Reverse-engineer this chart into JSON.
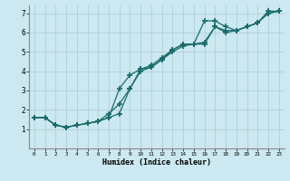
{
  "xlabel": "Humidex (Indice chaleur)",
  "bg_color": "#cce8f0",
  "grid_color": "#b0cfd8",
  "line_color": "#1a6b6b",
  "xlim": [
    -0.5,
    23.5
  ],
  "ylim": [
    0,
    7.4
  ],
  "xticks": [
    0,
    1,
    2,
    3,
    4,
    5,
    6,
    7,
    8,
    9,
    10,
    11,
    12,
    13,
    14,
    15,
    16,
    17,
    18,
    19,
    20,
    21,
    22,
    23
  ],
  "yticks": [
    1,
    2,
    3,
    4,
    5,
    6,
    7
  ],
  "line1_x": [
    0,
    1,
    2,
    3,
    4,
    5,
    6,
    7,
    8,
    9,
    10,
    11,
    12,
    13,
    14,
    15,
    16,
    17,
    18,
    19,
    20,
    21,
    22,
    23
  ],
  "line1_y": [
    1.6,
    1.6,
    1.2,
    1.1,
    1.2,
    1.3,
    1.4,
    1.6,
    3.1,
    3.8,
    4.1,
    4.2,
    4.6,
    5.1,
    5.4,
    5.4,
    6.6,
    6.6,
    6.3,
    6.1,
    6.3,
    6.5,
    7.1,
    7.1
  ],
  "line2_x": [
    0,
    1,
    2,
    3,
    4,
    5,
    6,
    7,
    8,
    9,
    10,
    11,
    12,
    13,
    14,
    15,
    16,
    17,
    18,
    19,
    20,
    21,
    22,
    23
  ],
  "line2_y": [
    1.6,
    1.6,
    1.2,
    1.1,
    1.2,
    1.3,
    1.4,
    1.8,
    2.3,
    3.1,
    4.1,
    4.3,
    4.7,
    5.1,
    5.4,
    5.4,
    5.5,
    6.3,
    6.1,
    6.1,
    6.3,
    6.5,
    7.0,
    7.1
  ],
  "line3_x": [
    0,
    1,
    2,
    3,
    4,
    5,
    6,
    7,
    8,
    9,
    10,
    11,
    12,
    13,
    14,
    15,
    16,
    17,
    18,
    19,
    20,
    21,
    22,
    23
  ],
  "line3_y": [
    1.6,
    1.6,
    1.2,
    1.1,
    1.2,
    1.3,
    1.4,
    1.6,
    1.8,
    3.1,
    4.0,
    4.2,
    4.6,
    5.0,
    5.3,
    5.4,
    5.4,
    6.3,
    6.0,
    6.1,
    6.3,
    6.5,
    7.0,
    7.1
  ]
}
